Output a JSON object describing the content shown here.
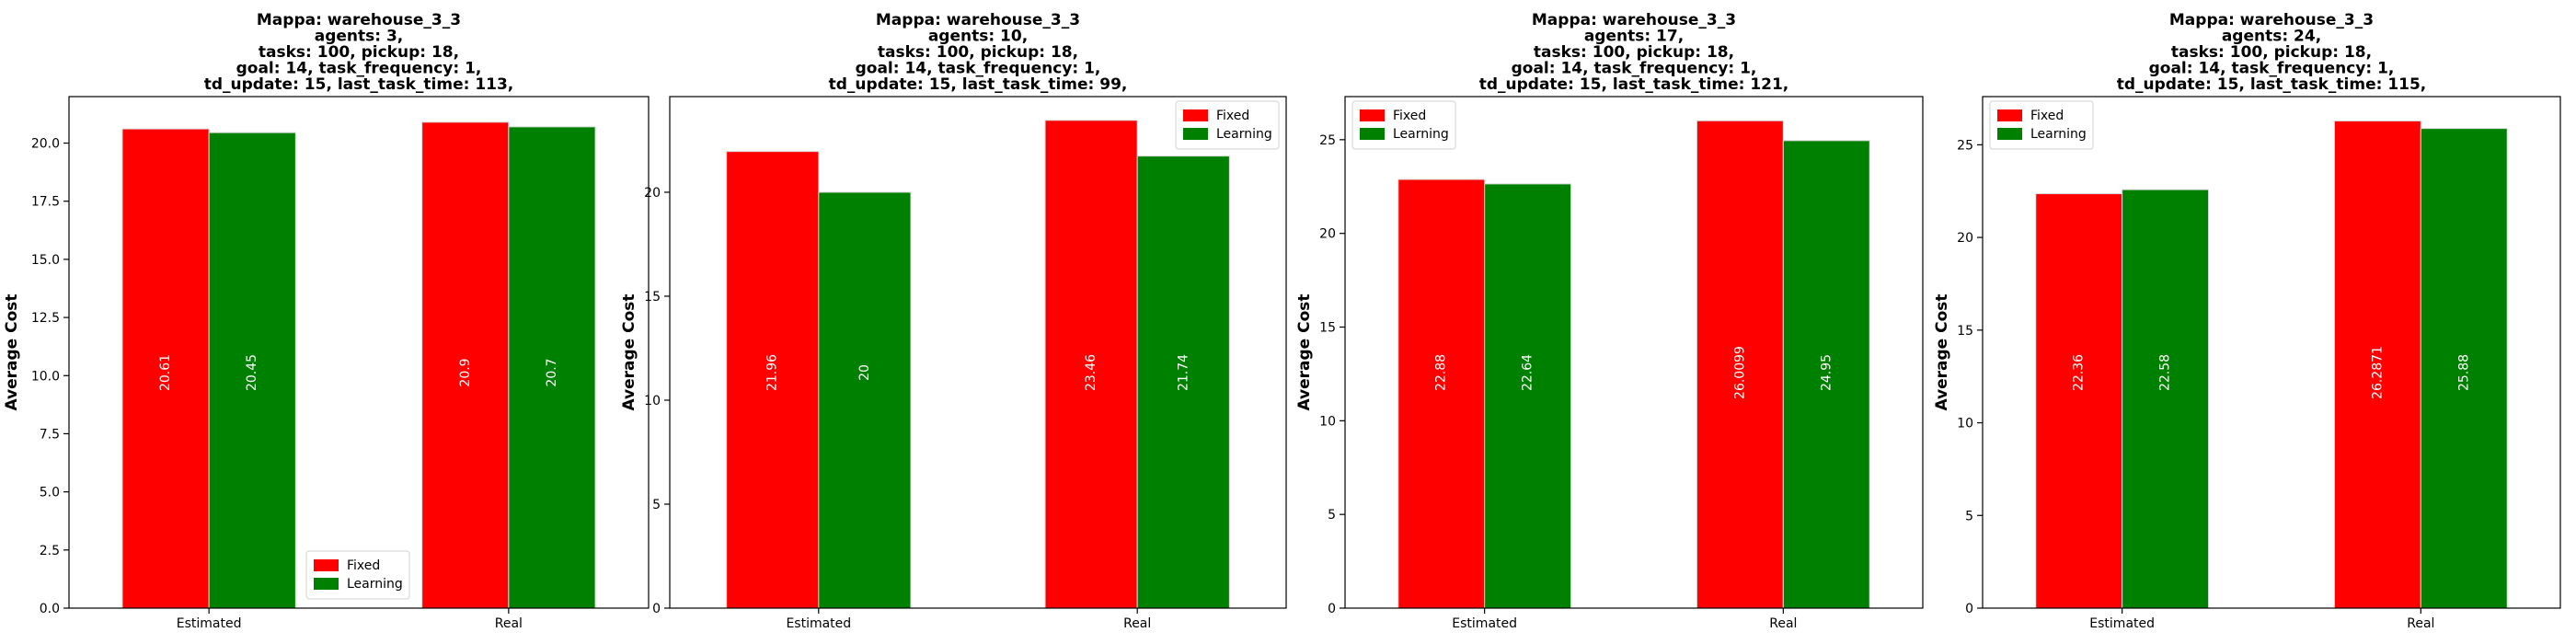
{
  "chart_data": [
    {
      "type": "bar",
      "title_lines": [
        "Mappa: warehouse_3_3",
        "agents: 3,",
        "tasks: 100, pickup: 18,",
        "goal: 14, task_frequency: 1,",
        "td_update: 15, last_task_time: 113,"
      ],
      "ylabel": "Average Cost",
      "xlabel": "",
      "categories": [
        "Estimated",
        "Real"
      ],
      "series": [
        {
          "name": "Fixed",
          "color": "#ff0000",
          "values": [
            20.61,
            20.9
          ],
          "labels": [
            "20.61",
            "20.9"
          ]
        },
        {
          "name": "Learning",
          "color": "#008000",
          "values": [
            20.45,
            20.7
          ],
          "labels": [
            "20.45",
            "20.7"
          ]
        }
      ],
      "ylim": [
        0,
        22.0
      ],
      "yticks": [
        0,
        2.5,
        5,
        7.5,
        10,
        12.5,
        15,
        17.5,
        20
      ],
      "ytick_labels": [
        "0.0",
        "2.5",
        "5.0",
        "7.5",
        "10.0",
        "12.5",
        "15.0",
        "17.5",
        "20.0"
      ],
      "legend_position": "lower-center",
      "grid": false
    },
    {
      "type": "bar",
      "title_lines": [
        "Mappa: warehouse_3_3",
        "agents: 10,",
        "tasks: 100, pickup: 18,",
        "goal: 14, task_frequency: 1,",
        "td_update: 15, last_task_time: 99,"
      ],
      "ylabel": "Average Cost",
      "xlabel": "",
      "categories": [
        "Estimated",
        "Real"
      ],
      "series": [
        {
          "name": "Fixed",
          "color": "#ff0000",
          "values": [
            21.96,
            23.46
          ],
          "labels": [
            "21.96",
            "23.46"
          ]
        },
        {
          "name": "Learning",
          "color": "#008000",
          "values": [
            20,
            21.74
          ],
          "labels": [
            "20",
            "21.74"
          ]
        }
      ],
      "ylim": [
        0,
        24.6
      ],
      "yticks": [
        0,
        5,
        10,
        15,
        20
      ],
      "ytick_labels": [
        "0",
        "5",
        "10",
        "15",
        "20"
      ],
      "legend_position": "upper-right",
      "grid": false
    },
    {
      "type": "bar",
      "title_lines": [
        "Mappa: warehouse_3_3",
        "agents: 17,",
        "tasks: 100, pickup: 18,",
        "goal: 14, task_frequency: 1,",
        "td_update: 15, last_task_time: 121,"
      ],
      "ylabel": "Average Cost",
      "xlabel": "",
      "categories": [
        "Estimated",
        "Real"
      ],
      "series": [
        {
          "name": "Fixed",
          "color": "#ff0000",
          "values": [
            22.88,
            26.0099
          ],
          "labels": [
            "22.88",
            "26.0099"
          ]
        },
        {
          "name": "Learning",
          "color": "#008000",
          "values": [
            22.64,
            24.95
          ],
          "labels": [
            "22.64",
            "24.95"
          ]
        }
      ],
      "ylim": [
        0,
        27.3
      ],
      "yticks": [
        0,
        5,
        10,
        15,
        20,
        25
      ],
      "ytick_labels": [
        "0",
        "5",
        "10",
        "15",
        "20",
        "25"
      ],
      "legend_position": "upper-left",
      "grid": false
    },
    {
      "type": "bar",
      "title_lines": [
        "Mappa: warehouse_3_3",
        "agents: 24,",
        "tasks: 100, pickup: 18,",
        "goal: 14, task_frequency: 1,",
        "td_update: 15, last_task_time: 115,"
      ],
      "ylabel": "Average Cost",
      "xlabel": "",
      "categories": [
        "Estimated",
        "Real"
      ],
      "series": [
        {
          "name": "Fixed",
          "color": "#ff0000",
          "values": [
            22.36,
            26.2871
          ],
          "labels": [
            "22.36",
            "26.2871"
          ]
        },
        {
          "name": "Learning",
          "color": "#008000",
          "values": [
            22.58,
            25.88
          ],
          "labels": [
            "22.58",
            "25.88"
          ]
        }
      ],
      "ylim": [
        0,
        27.6
      ],
      "yticks": [
        0,
        5,
        10,
        15,
        20,
        25
      ],
      "ytick_labels": [
        "0",
        "5",
        "10",
        "15",
        "20",
        "25"
      ],
      "legend_position": "upper-left",
      "grid": false
    }
  ]
}
